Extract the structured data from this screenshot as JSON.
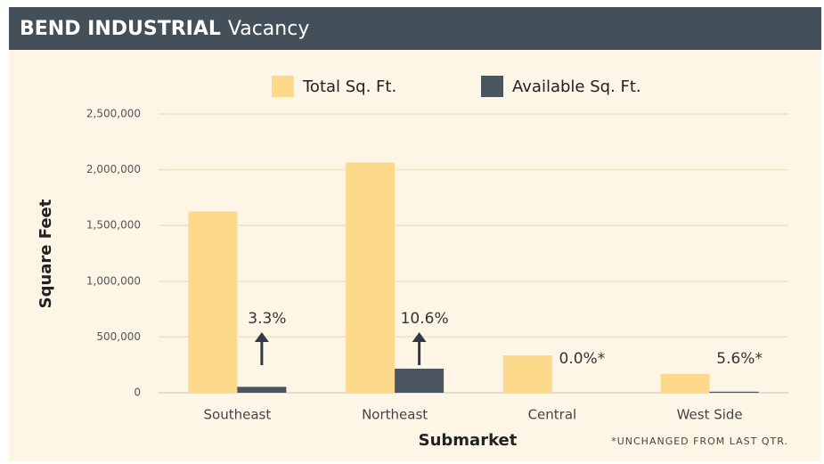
{
  "header": {
    "title": "BEND INDUSTRIAL",
    "subtitle": "Vacancy"
  },
  "chart_data": {
    "type": "bar",
    "categories": [
      "Southeast",
      "Northeast",
      "Central",
      "West Side"
    ],
    "series": [
      {
        "name": "Total Sq. Ft.",
        "color": "#fdd98b",
        "values": [
          1625000,
          2065000,
          335000,
          170000
        ]
      },
      {
        "name": "Available Sq. Ft.",
        "color": "#4a5560",
        "values": [
          53000,
          216000,
          0,
          9500
        ]
      }
    ],
    "annotations": [
      {
        "text": "3.3%",
        "arrow": "up"
      },
      {
        "text": "10.6%",
        "arrow": "up"
      },
      {
        "text": "0.0%*",
        "arrow": "none"
      },
      {
        "text": "5.6%*",
        "arrow": "none"
      }
    ],
    "ylabel": "Square Feet",
    "xlabel": "Submarket",
    "footnote": "*UNCHANGED FROM LAST QTR.",
    "ylim": [
      0,
      2500000
    ],
    "yticks": [
      0,
      {
        "value": 500000,
        "label": "500,000"
      },
      {
        "value": 1000000,
        "label": "1,000,000"
      },
      {
        "value": 1500000,
        "label": "1,500,000"
      },
      {
        "value": 2000000,
        "label": "2,000,000"
      },
      {
        "value": 2500000,
        "label": "2,500,000"
      }
    ],
    "grid": true,
    "legend": "top"
  }
}
